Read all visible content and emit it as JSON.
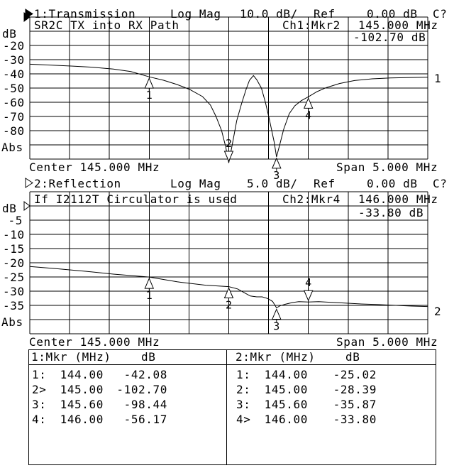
{
  "screen": {
    "bg": "#ffffff",
    "fg": "#000000"
  },
  "chart1": {
    "indicator": "filled",
    "title": "1:Transmission",
    "format": "Log Mag",
    "scale": "10.0 dB/",
    "ref_label": "Ref",
    "ref_value": "0.00 dB",
    "cal_status": "C?",
    "unit": "dB",
    "y_ticks": [
      "-20",
      "-30",
      "-40",
      "-50",
      "-60",
      "-70",
      "-80"
    ],
    "abs_label": "Abs",
    "annotation": "SR2C TX into RX Path",
    "readout_channel": "Ch1:Mkr2",
    "readout_freq": "145.000 MHz",
    "readout_value": "-102.70 dB",
    "center_label": "Center 145.000 MHz",
    "span_label": "Span 5.000 MHz",
    "trace_id": "1"
  },
  "chart2": {
    "indicator": "hollow",
    "title": "2:Reflection",
    "format": "Log Mag",
    "scale": "5.0 dB/",
    "ref_label": "Ref",
    "ref_value": "0.00 dB",
    "cal_status": "C?",
    "unit": "dB",
    "y_ticks": [
      "-5",
      "-10",
      "-15",
      "-20",
      "-25",
      "-30",
      "-35"
    ],
    "abs_label": "Abs",
    "annotation": "If I2112T Circulator is used",
    "readout_channel": "Ch2:Mkr4",
    "readout_freq": "146.000 MHz",
    "readout_value": "-33.80 dB",
    "center_label": "Center 145.000 MHz",
    "span_label": "Span 5.000 MHz",
    "trace_id": "2"
  },
  "marker_table": {
    "left": {
      "header": "1:Mkr (MHz)",
      "unit": "dB",
      "rows": [
        {
          "n": "1:",
          "freq": "144.00",
          "val": "-42.08"
        },
        {
          "n": "2>",
          "freq": "145.00",
          "val": "-102.70"
        },
        {
          "n": "3:",
          "freq": "145.60",
          "val": "-98.44"
        },
        {
          "n": "4:",
          "freq": "146.00",
          "val": "-56.17"
        }
      ]
    },
    "right": {
      "header": "2:Mkr (MHz)",
      "unit": "dB",
      "rows": [
        {
          "n": "1:",
          "freq": "144.00",
          "val": "-25.02"
        },
        {
          "n": "2:",
          "freq": "145.00",
          "val": "-28.39"
        },
        {
          "n": "3:",
          "freq": "145.60",
          "val": "-35.87"
        },
        {
          "n": "4>",
          "freq": "146.00",
          "val": "-33.80"
        }
      ]
    }
  },
  "chart_data": [
    {
      "type": "line",
      "channel": 1,
      "title": "1:Transmission",
      "format": "Log Mag",
      "scale_db_per_div": 10.0,
      "ref_db": 0.0,
      "center_mhz": 145.0,
      "span_mhz": 5.0,
      "xlim": [
        142.5,
        147.5
      ],
      "ylim": [
        -100,
        0
      ],
      "grid_divisions": [
        10,
        10
      ],
      "xlabel": "MHz",
      "ylabel": "dB",
      "markers": [
        {
          "n": "1",
          "mhz": 144.0,
          "db": -42.08,
          "active": false
        },
        {
          "n": "2",
          "mhz": 145.0,
          "db": -102.7,
          "active": true
        },
        {
          "n": "3",
          "mhz": 145.6,
          "db": -98.44,
          "active": false
        },
        {
          "n": "4",
          "mhz": 146.0,
          "db": -56.17,
          "active": false
        }
      ],
      "trace": [
        [
          142.5,
          -33.2
        ],
        [
          142.75,
          -33.8
        ],
        [
          143.02,
          -34.5
        ],
        [
          143.28,
          -35.3
        ],
        [
          143.55,
          -36.6
        ],
        [
          143.77,
          -38.4
        ],
        [
          144.0,
          -42.08
        ],
        [
          144.18,
          -44.5
        ],
        [
          144.35,
          -47.5
        ],
        [
          144.51,
          -51.0
        ],
        [
          144.67,
          -56.0
        ],
        [
          144.77,
          -62.0
        ],
        [
          144.84,
          -70.0
        ],
        [
          144.91,
          -80.0
        ],
        [
          144.96,
          -91.0
        ],
        [
          145.0,
          -102.7
        ],
        [
          145.05,
          -88.0
        ],
        [
          145.1,
          -73.0
        ],
        [
          145.16,
          -61.0
        ],
        [
          145.22,
          -50.5
        ],
        [
          145.26,
          -44.5
        ],
        [
          145.31,
          -41.2
        ],
        [
          145.35,
          -44.0
        ],
        [
          145.41,
          -50.0
        ],
        [
          145.46,
          -60.0
        ],
        [
          145.51,
          -72.0
        ],
        [
          145.57,
          -88.0
        ],
        [
          145.6,
          -98.44
        ],
        [
          145.64,
          -90.0
        ],
        [
          145.69,
          -79.0
        ],
        [
          145.76,
          -68.0
        ],
        [
          145.83,
          -62.5
        ],
        [
          145.91,
          -58.9
        ],
        [
          146.0,
          -56.17
        ],
        [
          146.11,
          -52.5
        ],
        [
          146.22,
          -49.8
        ],
        [
          146.39,
          -46.8
        ],
        [
          146.58,
          -44.7
        ],
        [
          146.8,
          -43.5
        ],
        [
          147.03,
          -42.9
        ],
        [
          147.25,
          -42.6
        ],
        [
          147.5,
          -42.4
        ]
      ]
    },
    {
      "type": "line",
      "channel": 2,
      "title": "2:Reflection",
      "format": "Log Mag",
      "scale_db_per_div": 5.0,
      "ref_db": 0.0,
      "center_mhz": 145.0,
      "span_mhz": 5.0,
      "xlim": [
        142.5,
        147.5
      ],
      "ylim": [
        -45,
        5
      ],
      "grid_divisions": [
        10,
        10
      ],
      "xlabel": "MHz",
      "ylabel": "dB",
      "markers": [
        {
          "n": "1",
          "mhz": 144.0,
          "db": -25.02,
          "active": false
        },
        {
          "n": "2",
          "mhz": 145.0,
          "db": -28.39,
          "active": false
        },
        {
          "n": "3",
          "mhz": 145.6,
          "db": -35.87,
          "active": false
        },
        {
          "n": "4",
          "mhz": 146.0,
          "db": -33.8,
          "active": true
        }
      ],
      "trace": [
        [
          142.5,
          -21.3
        ],
        [
          142.84,
          -22.1
        ],
        [
          143.2,
          -23.0
        ],
        [
          143.55,
          -24.0
        ],
        [
          144.0,
          -25.02
        ],
        [
          144.35,
          -26.7
        ],
        [
          144.71,
          -27.9
        ],
        [
          145.0,
          -28.39
        ],
        [
          145.11,
          -29.2
        ],
        [
          145.2,
          -30.6
        ],
        [
          145.27,
          -31.7
        ],
        [
          145.35,
          -32.0
        ],
        [
          145.42,
          -32.0
        ],
        [
          145.49,
          -32.6
        ],
        [
          145.55,
          -33.6
        ],
        [
          145.57,
          -34.5
        ],
        [
          145.6,
          -35.87
        ],
        [
          145.64,
          -35.2
        ],
        [
          145.71,
          -34.6
        ],
        [
          145.8,
          -34.0
        ],
        [
          145.88,
          -33.7
        ],
        [
          146.0,
          -33.8
        ],
        [
          146.13,
          -33.7
        ],
        [
          146.27,
          -33.9
        ],
        [
          146.4,
          -34.1
        ],
        [
          146.62,
          -34.45
        ],
        [
          146.85,
          -34.7
        ],
        [
          147.1,
          -35.0
        ],
        [
          147.3,
          -35.25
        ],
        [
          147.5,
          -35.4
        ]
      ]
    }
  ]
}
